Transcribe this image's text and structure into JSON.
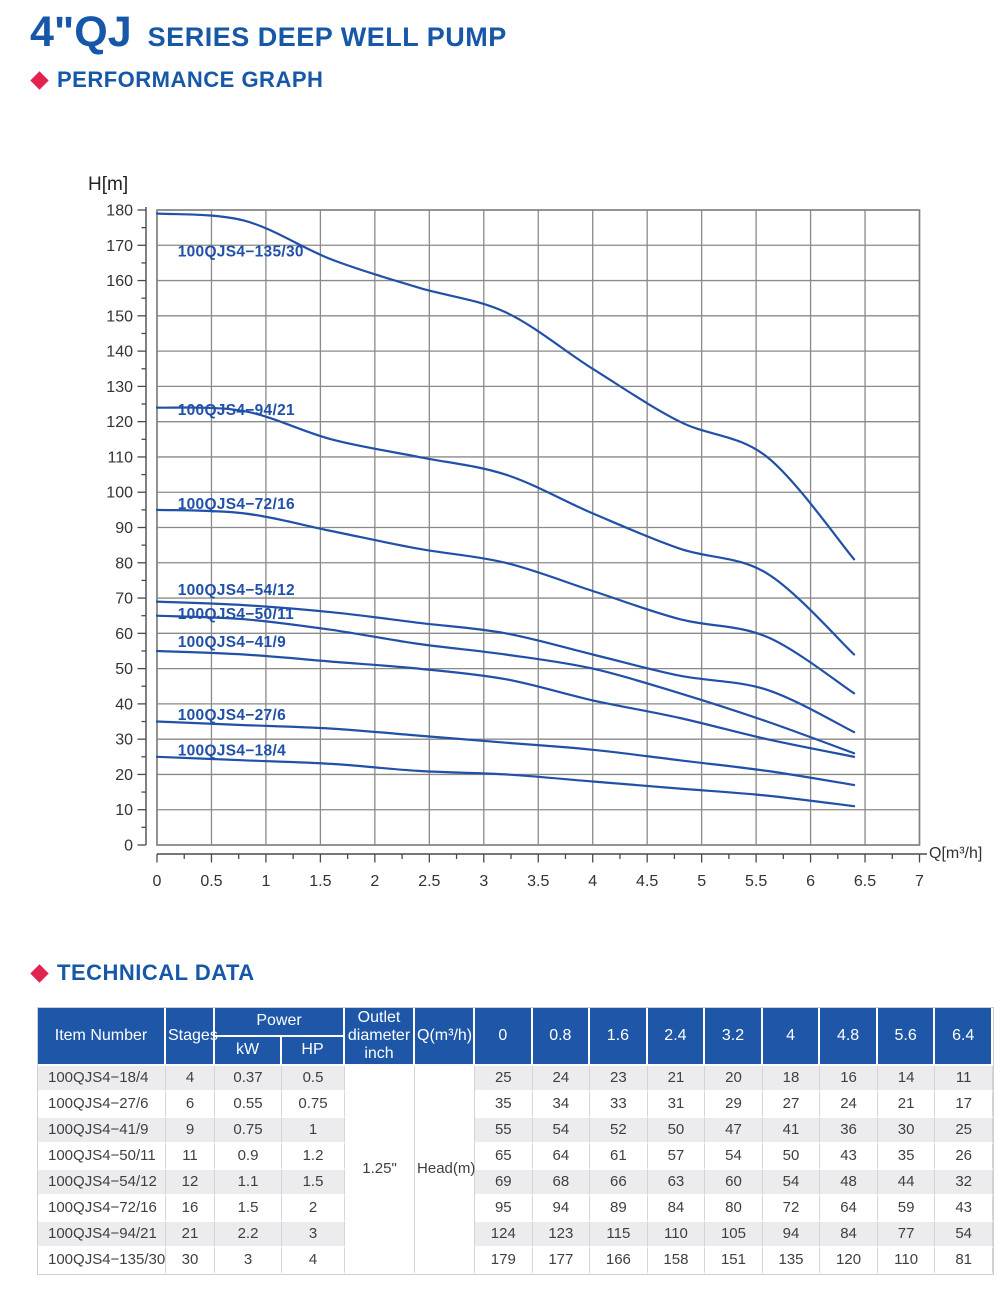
{
  "header": {
    "title_main": "4\"QJ",
    "title_sub": "SERIES DEEP WELL PUMP",
    "section_performance": "PERFORMANCE GRAPH",
    "section_technical": "TECHNICAL DATA"
  },
  "colors": {
    "brand_blue": "#1757A8",
    "curve_blue": "#2150A8",
    "accent_red": "#E2234F",
    "grid_gray": "#8A8A8A",
    "axis_gray": "#4A4A4A",
    "tick_text": "#333333",
    "table_header_bg": "#1E56A8",
    "row_alt_bg": "#ECECEF",
    "cell_text": "#3F3F3F"
  },
  "chart_data": {
    "type": "line",
    "title": "",
    "xlabel": "Q[m³/h]",
    "ylabel": "H[m]",
    "xlim": [
      0,
      7
    ],
    "ylim": [
      0,
      180
    ],
    "x_major_step": 0.5,
    "x_minor_step": 0.25,
    "y_major_step": 10,
    "y_minor_step": 5,
    "grid": true,
    "legend_position": "inline-curve-labels",
    "x": [
      0,
      0.8,
      1.6,
      2.4,
      3.2,
      4,
      4.8,
      5.6,
      6.4
    ],
    "series": [
      {
        "name": "100QJS4−135/30",
        "values": [
          179,
          177,
          166,
          158,
          151,
          135,
          120,
          110,
          81
        ],
        "label_pos": {
          "x": 0.19,
          "y": 166.8
        }
      },
      {
        "name": "100QJS4−94/21",
        "values": [
          124,
          123,
          115,
          110,
          105,
          94,
          84,
          77,
          54
        ],
        "label_pos": {
          "x": 0.19,
          "y": 121.9
        }
      },
      {
        "name": "100QJS4−72/16",
        "values": [
          95,
          94,
          89,
          84,
          80,
          72,
          64,
          59,
          43
        ],
        "label_pos": {
          "x": 0.19,
          "y": 95.2
        }
      },
      {
        "name": "100QJS4−54/12",
        "values": [
          69,
          68,
          66,
          63,
          60,
          54,
          48,
          44,
          32
        ],
        "label_pos": {
          "x": 0.19,
          "y": 70.9
        }
      },
      {
        "name": "100QJS4−50/11",
        "values": [
          65,
          64,
          61,
          57,
          54,
          50,
          43,
          35,
          26
        ],
        "label_pos": {
          "x": 0.19,
          "y": 64.1
        }
      },
      {
        "name": "100QJS4−41/9",
        "values": [
          55,
          54,
          52,
          50,
          47,
          41,
          36,
          30,
          25
        ],
        "label_pos": {
          "x": 0.19,
          "y": 56.1
        }
      },
      {
        "name": "100QJS4−27/6",
        "values": [
          35,
          34,
          33,
          31,
          29,
          27,
          24,
          21,
          17
        ],
        "label_pos": {
          "x": 0.19,
          "y": 35.5
        }
      },
      {
        "name": "100QJS4−18/4",
        "values": [
          25,
          24,
          23,
          21,
          20,
          18,
          16,
          14,
          11
        ],
        "label_pos": {
          "x": 0.19,
          "y": 25.3
        }
      }
    ],
    "x_tick_labels": [
      "0",
      "0.5",
      "1",
      "1.5",
      "2",
      "2.5",
      "3",
      "3.5",
      "4",
      "4.5",
      "5",
      "5.5",
      "6",
      "6.5",
      "7"
    ],
    "y_tick_labels": [
      "0",
      "10",
      "20",
      "30",
      "40",
      "50",
      "60",
      "70",
      "80",
      "90",
      "100",
      "110",
      "120",
      "130",
      "140",
      "150",
      "160",
      "170",
      "180"
    ]
  },
  "table": {
    "col_item": "Item Number",
    "col_stages": "Stages",
    "col_power": "Power",
    "col_kw": "kW",
    "col_hp": "HP",
    "col_outlet": "Outlet diameter inch",
    "col_q": "Q(m³/h)",
    "flow_headers": [
      "0",
      "0.8",
      "1.6",
      "2.4",
      "3.2",
      "4",
      "4.8",
      "5.6",
      "6.4"
    ],
    "outlet_value": "1.25\"",
    "head_label": "Head(m)",
    "rows": [
      {
        "item": "100QJS4−18/4",
        "stages": "4",
        "kw": "0.37",
        "hp": "0.5",
        "head": [
          25,
          24,
          23,
          21,
          20,
          18,
          16,
          14,
          11
        ]
      },
      {
        "item": "100QJS4−27/6",
        "stages": "6",
        "kw": "0.55",
        "hp": "0.75",
        "head": [
          35,
          34,
          33,
          31,
          29,
          27,
          24,
          21,
          17
        ]
      },
      {
        "item": "100QJS4−41/9",
        "stages": "9",
        "kw": "0.75",
        "hp": "1",
        "head": [
          55,
          54,
          52,
          50,
          47,
          41,
          36,
          30,
          25
        ]
      },
      {
        "item": "100QJS4−50/11",
        "stages": "11",
        "kw": "0.9",
        "hp": "1.2",
        "head": [
          65,
          64,
          61,
          57,
          54,
          50,
          43,
          35,
          26
        ]
      },
      {
        "item": "100QJS4−54/12",
        "stages": "12",
        "kw": "1.1",
        "hp": "1.5",
        "head": [
          69,
          68,
          66,
          63,
          60,
          54,
          48,
          44,
          32
        ]
      },
      {
        "item": "100QJS4−72/16",
        "stages": "16",
        "kw": "1.5",
        "hp": "2",
        "head": [
          95,
          94,
          89,
          84,
          80,
          72,
          64,
          59,
          43
        ]
      },
      {
        "item": "100QJS4−94/21",
        "stages": "21",
        "kw": "2.2",
        "hp": "3",
        "head": [
          124,
          123,
          115,
          110,
          105,
          94,
          84,
          77,
          54
        ]
      },
      {
        "item": "100QJS4−135/30",
        "stages": "30",
        "kw": "3",
        "hp": "4",
        "head": [
          179,
          177,
          166,
          158,
          151,
          135,
          120,
          110,
          81
        ]
      }
    ]
  }
}
